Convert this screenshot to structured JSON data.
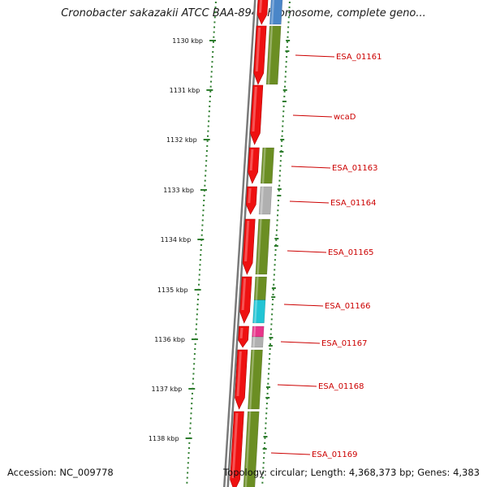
{
  "title": "Cronobacter sakazakii ATCC BAA-894 chromosome, complete geno...",
  "footer": {
    "accession": "Accession: NC_009778",
    "info": "Topology: circular; Length: 4,368,373 bp; Genes: 4,383"
  },
  "colors": {
    "cds_forward": "#ee1111",
    "cog_green": "#6b8e23",
    "cog_gray": "#b0b0b0",
    "cog_cyan": "#22c4d4",
    "cog_magenta": "#e8358a",
    "cog_blue": "#4a86c8",
    "backbone": "#7a7a7a",
    "tick": "#2e7d2e",
    "label": "#cc0000"
  },
  "kbp_labels": [
    "1130 kbp",
    "1131 kbp",
    "1132 kbp",
    "1133 kbp",
    "1134 kbp",
    "1135 kbp",
    "1136 kbp",
    "1137 kbp",
    "1138 kbp"
  ],
  "gene_labels": [
    "ESA_01161",
    "wcaD",
    "ESA_01163",
    "ESA_01164",
    "ESA_01165",
    "ESA_01166",
    "ESA_01167",
    "ESA_01168",
    "ESA_01169"
  ],
  "features": [
    {
      "cog": [
        "blue"
      ]
    },
    {
      "cog": [
        "green"
      ]
    },
    {
      "cog": []
    },
    {
      "cog": [
        "green"
      ]
    },
    {
      "cog": [
        "gray"
      ]
    },
    {
      "cog": [
        "green"
      ]
    },
    {
      "cog": [
        "green",
        "cyan"
      ]
    },
    {
      "cog": [
        "magenta",
        "gray"
      ]
    },
    {
      "cog": [
        "green"
      ]
    },
    {
      "cog": [
        "green"
      ]
    }
  ]
}
